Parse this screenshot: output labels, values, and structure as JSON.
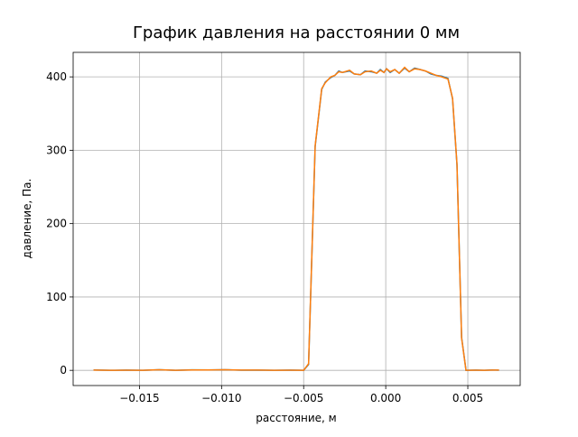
{
  "chart_data": {
    "type": "line",
    "title": "График давления на расстоянии 0 мм",
    "x_label": "расстояние, м",
    "y_label": "давление, Па.",
    "x": [
      -0.0178,
      -0.0168,
      -0.0158,
      -0.0148,
      -0.0138,
      -0.0128,
      -0.0118,
      -0.0108,
      -0.0098,
      -0.0088,
      -0.0078,
      -0.0068,
      -0.0058,
      -0.005,
      -0.0047,
      -0.0043,
      -0.0039,
      -0.00368,
      -0.00335,
      -0.0031,
      -0.00286,
      -0.00264,
      -0.0022,
      -0.00192,
      -0.00154,
      -0.00126,
      -0.00088,
      -0.00055,
      -0.00033,
      -0.00011,
      5e-05,
      0.00027,
      0.00055,
      0.00082,
      0.00115,
      0.00143,
      0.00176,
      0.00209,
      0.00242,
      0.00275,
      0.00308,
      0.00341,
      0.00379,
      0.00407,
      0.00434,
      0.00462,
      0.00489,
      0.0055,
      0.006,
      0.0065,
      0.0069
    ],
    "series": [
      {
        "color": "#1f77b4",
        "values": [
          0.5,
          0,
          0.3,
          0,
          0.8,
          0,
          0.7,
          0.5,
          0.9,
          0.2,
          0.4,
          0,
          0.3,
          0,
          8,
          305,
          383,
          393,
          399,
          402,
          408,
          406,
          408,
          404,
          403,
          408,
          407,
          405,
          410,
          406,
          411,
          406,
          410,
          405,
          412,
          407,
          412,
          410,
          408,
          404,
          402,
          401,
          398,
          370,
          280,
          45,
          0,
          0.3,
          0,
          0.5,
          0.2
        ]
      },
      {
        "color": "#ff7f0e",
        "values": [
          0.4,
          0.1,
          0.2,
          0.1,
          0.9,
          0.1,
          0.6,
          0.6,
          0.8,
          0.3,
          0.3,
          0.1,
          0.2,
          0.1,
          9,
          306,
          384,
          392,
          400,
          402,
          407,
          406,
          409,
          404,
          403,
          407,
          408,
          405,
          409,
          406,
          411,
          407,
          410,
          405,
          413,
          407,
          411,
          410,
          408,
          405,
          402,
          400,
          397,
          371,
          281,
          44,
          0.1,
          0.2,
          0.1,
          0.4,
          0.3
        ]
      }
    ],
    "xlim": [
      -0.01904,
      0.00819
    ],
    "ylim": [
      -20.7,
      433.4
    ],
    "xticks": [
      {
        "value": -0.015,
        "label": "−0.015"
      },
      {
        "value": -0.01,
        "label": "−0.010"
      },
      {
        "value": -0.005,
        "label": "−0.005"
      },
      {
        "value": 0,
        "label": "0.000"
      },
      0.005
    ],
    "yticks": [
      0,
      100,
      200,
      300,
      400
    ],
    "grid": true
  }
}
